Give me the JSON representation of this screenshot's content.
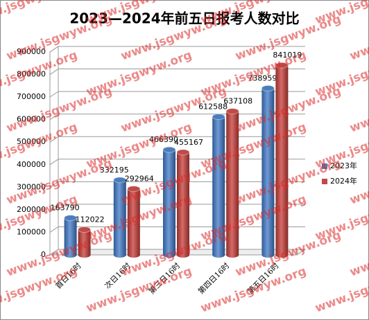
{
  "chart_data": {
    "type": "bar",
    "title": "2023—2024年前五日报考人数对比",
    "watermark": "www.jsgwyw.org",
    "categories": [
      "首日16时",
      "次日16时",
      "第三日16时",
      "第四日16时",
      "第五日16时"
    ],
    "series": [
      {
        "name": "2023年",
        "color": "#4a7ebb",
        "values": [
          163790,
          332195,
          466390,
          612588,
          738959
        ]
      },
      {
        "name": "2024年",
        "color": "#be4b48",
        "values": [
          112022,
          292964,
          455167,
          637108,
          841019
        ]
      }
    ],
    "ylim": [
      0,
      900000
    ],
    "yticks": [
      0,
      100000,
      200000,
      300000,
      400000,
      500000,
      600000,
      700000,
      800000,
      900000
    ],
    "grid": true,
    "legend": "right"
  }
}
